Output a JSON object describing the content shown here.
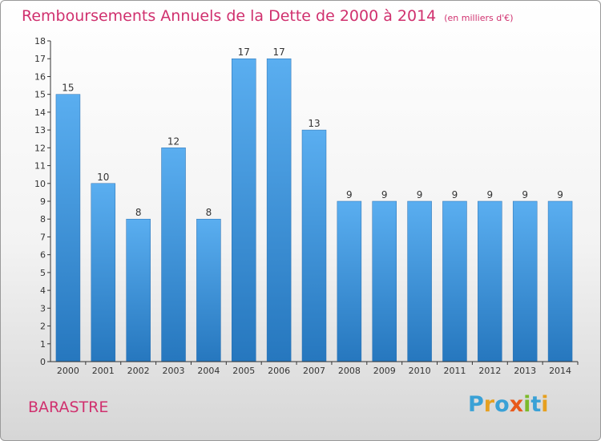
{
  "chart_data": {
    "type": "bar",
    "title": "Remboursements Annuels de la Dette de 2000 à 2014",
    "unit": "(en milliers d'€)",
    "categories": [
      "2000",
      "2001",
      "2002",
      "2003",
      "2004",
      "2005",
      "2006",
      "2007",
      "2008",
      "2009",
      "2010",
      "2011",
      "2012",
      "2013",
      "2014"
    ],
    "values": [
      15,
      10,
      8,
      12,
      8,
      17,
      17,
      13,
      9,
      9,
      9,
      9,
      9,
      9,
      9
    ],
    "ylim": [
      0,
      18
    ],
    "yticks": [
      "0",
      "1",
      "2",
      "3",
      "4",
      "5",
      "6",
      "7",
      "8",
      "9",
      "10",
      "11",
      "12",
      "13",
      "14",
      "15",
      "16",
      "17",
      "18"
    ],
    "grid": false,
    "bar_color": "#3f8fd6"
  },
  "location": "BARASTRE",
  "logo": {
    "text": "Proxiti",
    "letters": [
      {
        "char": "P",
        "color": "#3aa1d6"
      },
      {
        "char": "r",
        "color": "#e6a020"
      },
      {
        "char": "o",
        "color": "#3aa1d6"
      },
      {
        "char": "x",
        "color": "#e85a1c"
      },
      {
        "char": "i",
        "color": "#7cba2a"
      },
      {
        "char": "t",
        "color": "#3aa1d6"
      },
      {
        "char": "i",
        "color": "#e6a020"
      }
    ]
  },
  "colors": {
    "title": "#d0306e",
    "axis": "#333333",
    "bar_light": "#5aaef0",
    "bar_dark": "#2677be"
  }
}
